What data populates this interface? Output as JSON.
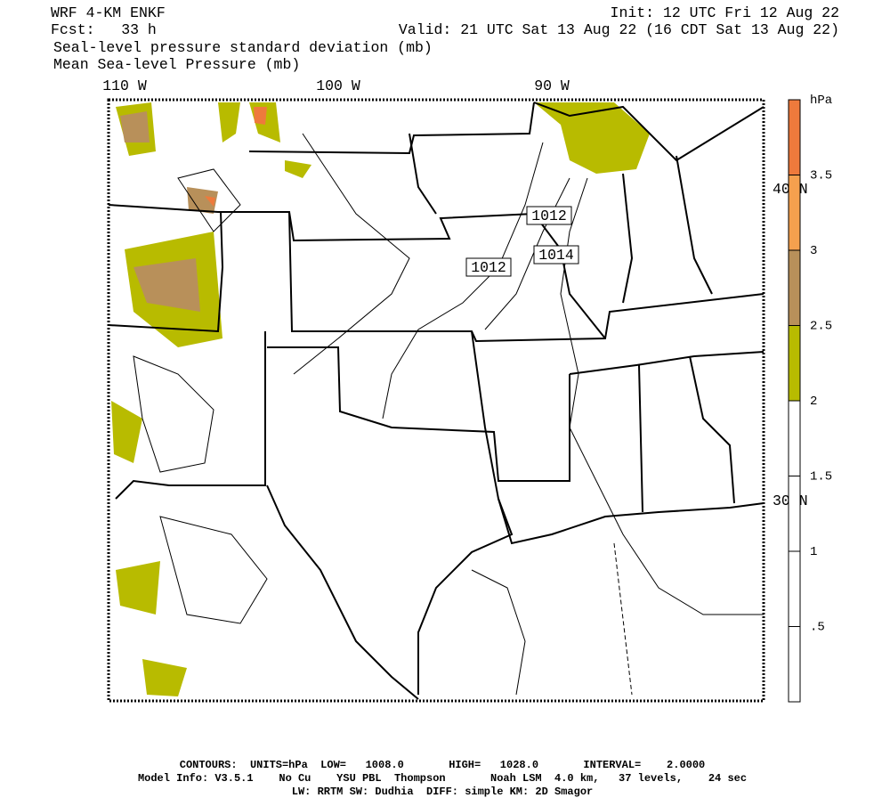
{
  "header": {
    "model": "WRF 4-KM ENKF",
    "init": "Init: 12 UTC Fri 12 Aug 22",
    "fcst": "Fcst:   33 h",
    "valid": "Valid: 21 UTC Sat 13 Aug 22 (16 CDT Sat 13 Aug 22)",
    "fields": [
      "Seal-level pressure standard deviation (mb)",
      "Mean Sea-level Pressure (mb)"
    ]
  },
  "map": {
    "lon_labels": [
      "110 W",
      "100 W",
      "90 W"
    ],
    "lat_labels": [
      "40 N",
      "30 N"
    ],
    "contour_labels": [
      "1012",
      "1012",
      "1014"
    ]
  },
  "colorbar": {
    "unit": "hPa",
    "labels": [
      "3.5",
      "3",
      "2.5",
      "2",
      "1.5",
      "1",
      ".5"
    ],
    "colors": [
      "#ee7a3c",
      "#f5a04e",
      "#b8905a",
      "#b8bb00",
      "#ffffff"
    ]
  },
  "footer": {
    "contours": "CONTOURS:  UNITS=hPa  LOW=   1008.0       HIGH=   1028.0       INTERVAL=    2.0000",
    "model_info": "Model Info: V3.5.1    No Cu    YSU PBL  Thompson       Noah LSM  4.0 km,   37 levels,    24 sec",
    "physics": "LW: RRTM SW: Dudhia  DIFF: simple KM: 2D Smagor"
  }
}
